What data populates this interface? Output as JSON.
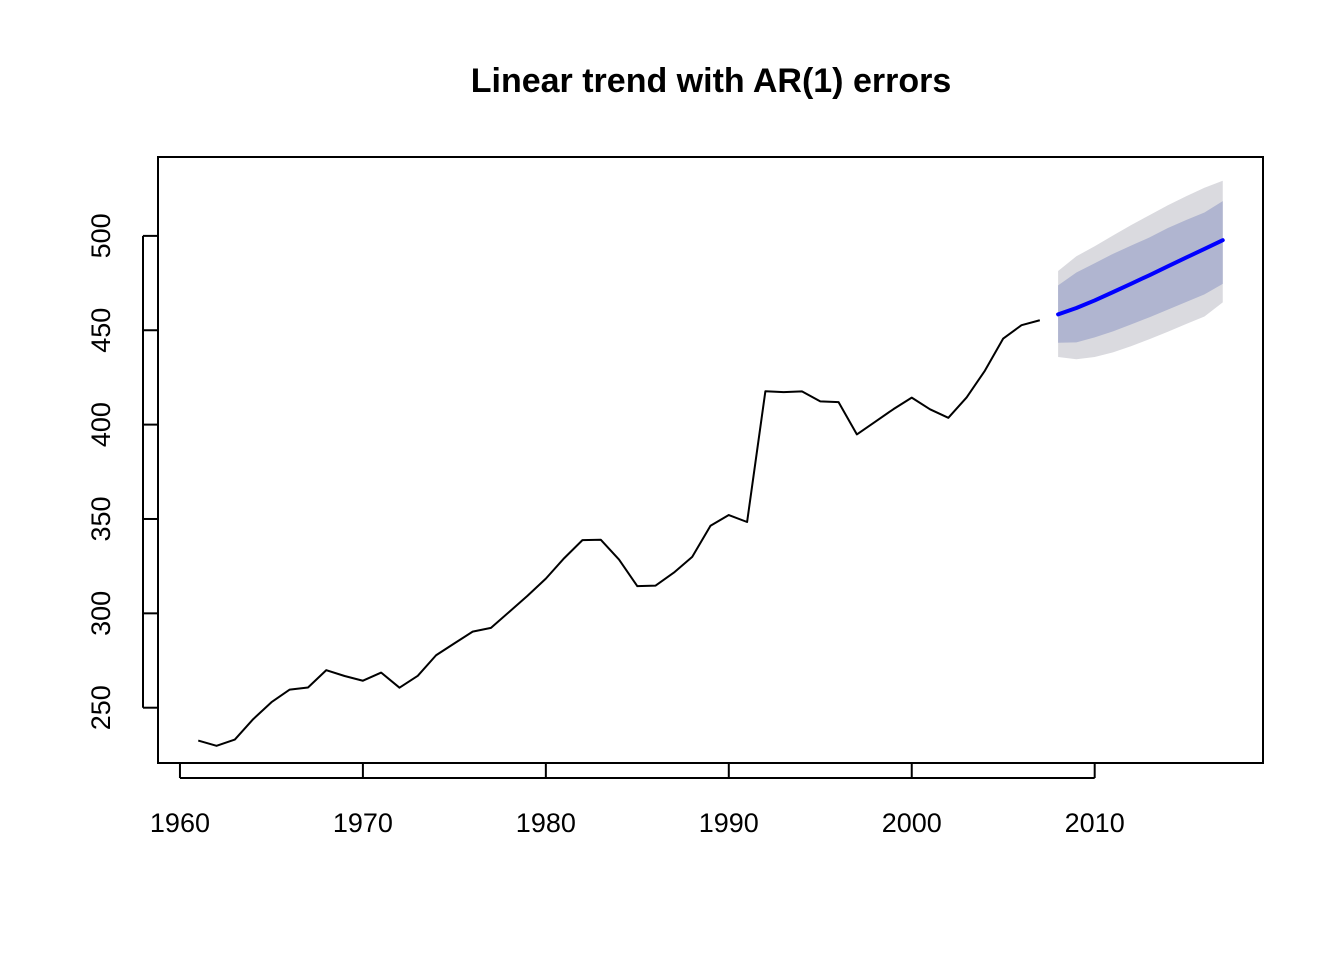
{
  "chart_data": {
    "type": "line",
    "title": "Linear trend with AR(1) errors",
    "xlabel": "",
    "ylabel": "",
    "xlim": [
      1958.8,
      2019.2
    ],
    "ylim": [
      220.7,
      541.8
    ],
    "x_ticks": [
      1960,
      1970,
      1980,
      1990,
      2000,
      2010
    ],
    "x_tick_labels": [
      "1960",
      "1970",
      "1980",
      "1990",
      "2000",
      "2010"
    ],
    "y_ticks": [
      250,
      300,
      350,
      400,
      450,
      500
    ],
    "y_tick_labels": [
      "250",
      "300",
      "350",
      "400",
      "450",
      "500"
    ],
    "grid": false,
    "legend": "none",
    "colors": {
      "history": "#000000",
      "forecast": "#0000ff",
      "band80": "#b0b5d0",
      "band95": "#dadadf",
      "axes": "#000000"
    },
    "series": [
      {
        "x": [
          1961,
          1962,
          1963,
          1964,
          1965,
          1966,
          1967,
          1968,
          1969,
          1970,
          1971,
          1972,
          1973,
          1974,
          1975,
          1976,
          1977,
          1978,
          1979,
          1980,
          1981,
          1982,
          1983,
          1984,
          1985,
          1986,
          1987,
          1988,
          1989,
          1990,
          1991,
          1992,
          1993,
          1994,
          1995,
          1996,
          1997,
          1998,
          1999,
          2000,
          2001,
          2002,
          2003,
          2004,
          2005,
          2006,
          2007
        ],
        "values": [
          232.6,
          229.8,
          233.1,
          243.9,
          252.9,
          259.6,
          260.7,
          269.9,
          266.8,
          264.3,
          268.6,
          260.6,
          266.9,
          277.8,
          284.1,
          290.3,
          292.3,
          300.8,
          309.3,
          318.4,
          329.2,
          338.8,
          339.0,
          328.5,
          314.4,
          314.7,
          321.6,
          329.9,
          346.4,
          352.1,
          348.4,
          417.7,
          417.2,
          417.6,
          412.3,
          411.9,
          394.8,
          401.5,
          408.2,
          414.3,
          408.1,
          403.6,
          414.4,
          428.6,
          445.6,
          452.7,
          455.3
        ]
      },
      {
        "x": [
          2008,
          2009,
          2010,
          2011,
          2012,
          2013,
          2014,
          2015,
          2016,
          2017
        ],
        "values": [
          458.4,
          461.8,
          465.8,
          470.2,
          474.7,
          479.2,
          483.9,
          488.5,
          493.1,
          497.7
        ],
        "lo80": [
          443.4,
          443.6,
          446.2,
          449.4,
          453.1,
          456.9,
          460.9,
          465.0,
          469.0,
          474.6
        ],
        "hi80": [
          473.8,
          480.6,
          485.5,
          490.5,
          494.9,
          499.2,
          504.2,
          508.4,
          512.4,
          518.4
        ],
        "lo95": [
          435.8,
          434.6,
          435.8,
          438.3,
          441.6,
          445.3,
          449.2,
          453.3,
          457.3,
          464.8
        ],
        "hi95": [
          481.4,
          489.2,
          494.5,
          500.2,
          505.8,
          511.0,
          516.2,
          521.0,
          525.5,
          529.2
        ]
      }
    ]
  }
}
